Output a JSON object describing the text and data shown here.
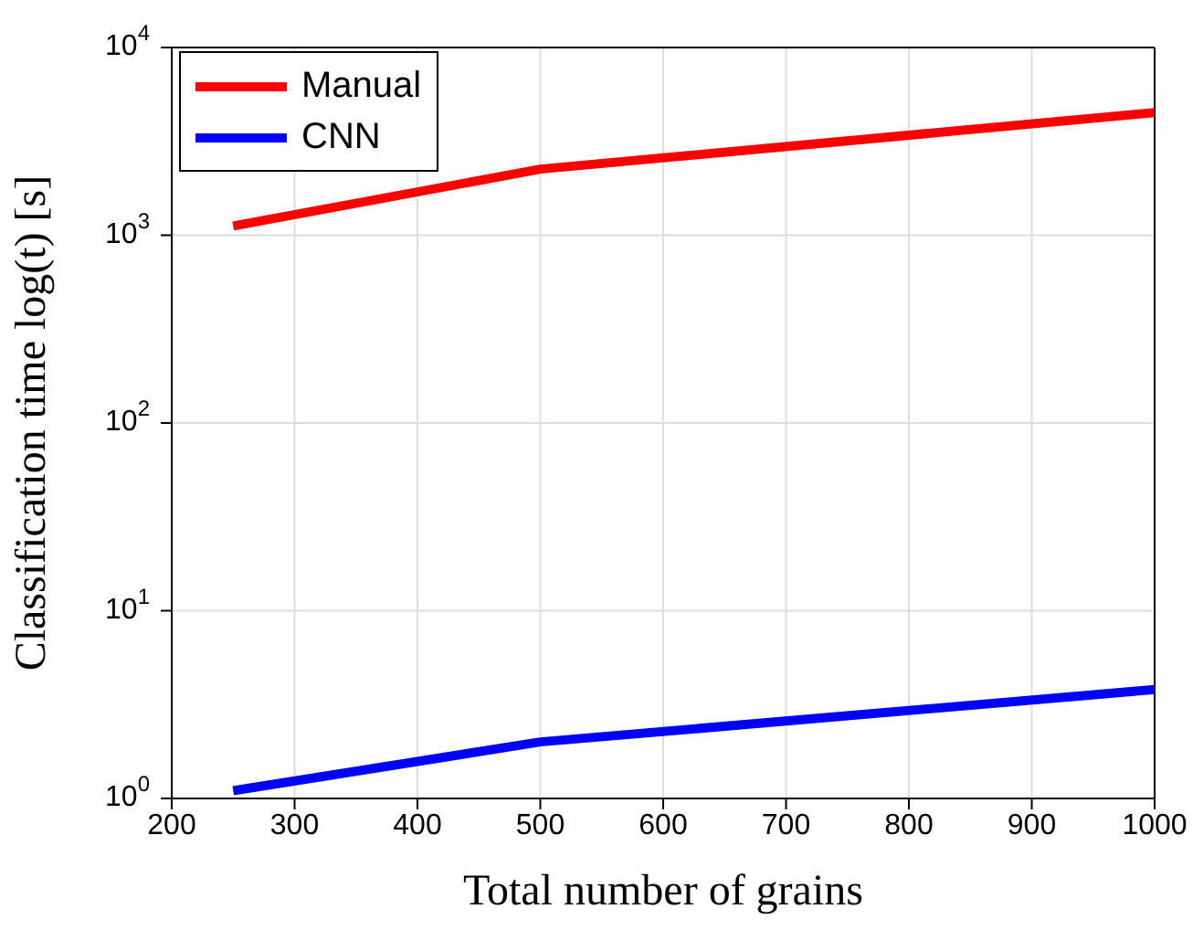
{
  "chart_data": {
    "type": "line",
    "xlabel": "Total number of grains",
    "ylabel": "Classification time log(t)  [s]",
    "x": [
      250,
      500,
      1000
    ],
    "series": [
      {
        "name": "Manual",
        "color": "#ff0000",
        "values": [
          1120,
          2250,
          4500
        ]
      },
      {
        "name": "CNN",
        "color": "#0000ff",
        "values": [
          1.1,
          2.0,
          3.8
        ]
      }
    ],
    "xlim": [
      200,
      1000
    ],
    "xticks": [
      200,
      300,
      400,
      500,
      600,
      700,
      800,
      900,
      1000
    ],
    "ylim": [
      1,
      10000
    ],
    "yticks": [
      {
        "value": 1,
        "label": "10$^{0}$"
      },
      {
        "value": 10,
        "label": "10$^{1}$"
      },
      {
        "value": 100,
        "label": "10$^{2}$"
      },
      {
        "value": 1000,
        "label": "10$^{3}$"
      },
      {
        "value": 10000,
        "label": "10$^{4}$"
      }
    ],
    "log": "y",
    "grid": true,
    "legend": "top left",
    "marker": "none",
    "line_style": "solid"
  }
}
